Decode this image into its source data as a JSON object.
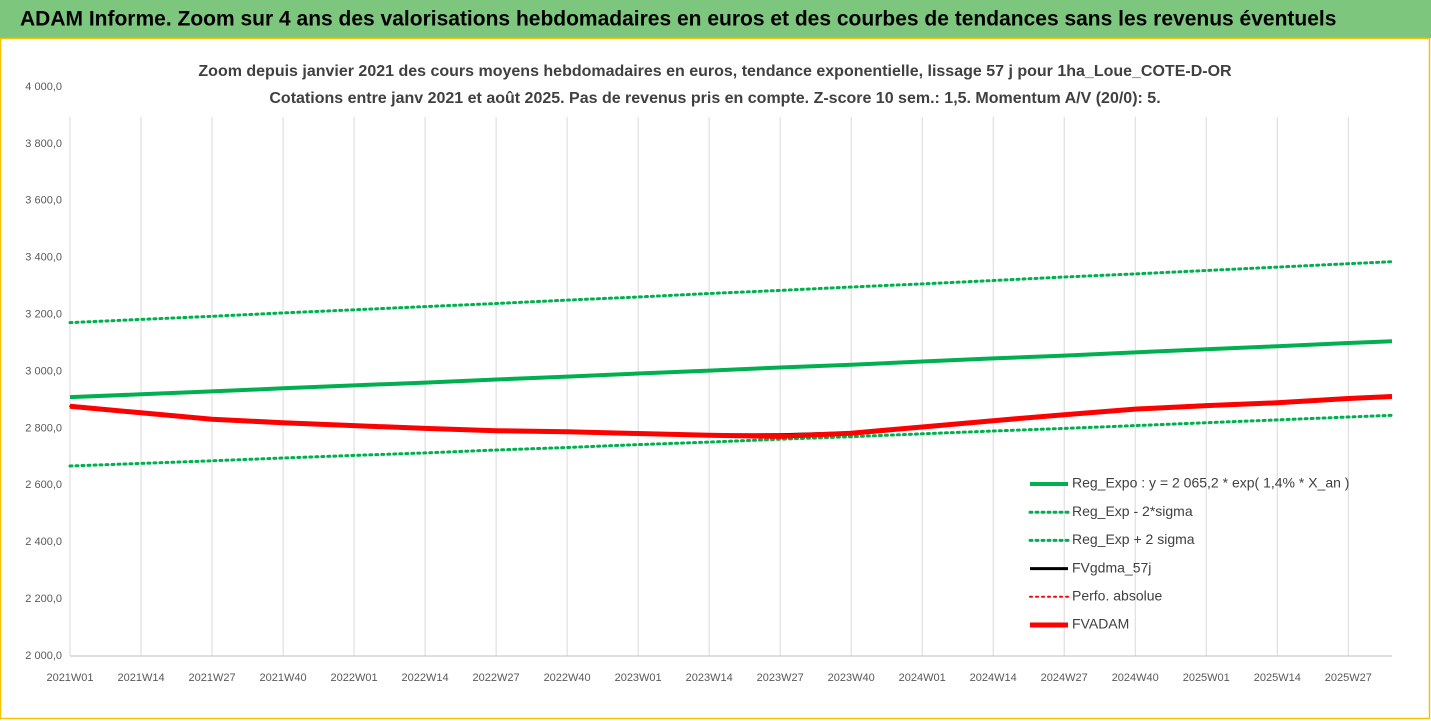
{
  "chart_data": {
    "type": "line",
    "banner": "ADAM Informe. Zoom sur 4 ans des valorisations hebdomadaires en euros et des courbes de tendances sans les revenus éventuels",
    "title": "Zoom depuis janvier 2021 des cours moyens hebdomadaires en euros, tendance exponentielle, lissage 57 j pour 1ha_Loue_COTE-D-OR",
    "subtitle": "Cotations entre janv 2021 et août 2025.  Pas de revenus pris en compte. Z-score 10 sem.: 1,5. Momentum A/V (20/0): 5.",
    "x": [
      0,
      13,
      26,
      39,
      52,
      65,
      78,
      91,
      104,
      117,
      130,
      143,
      156,
      169,
      182,
      195,
      208,
      221,
      234,
      242
    ],
    "xlim": [
      0,
      242
    ],
    "xticks": [
      {
        "value": 0,
        "label": "2021W01"
      },
      {
        "value": 13,
        "label": "2021W14"
      },
      {
        "value": 26,
        "label": "2021W27"
      },
      {
        "value": 39,
        "label": "2021W40"
      },
      {
        "value": 52,
        "label": "2022W01"
      },
      {
        "value": 65,
        "label": "2022W14"
      },
      {
        "value": 78,
        "label": "2022W27"
      },
      {
        "value": 91,
        "label": "2022W40"
      },
      {
        "value": 104,
        "label": "2023W01"
      },
      {
        "value": 117,
        "label": "2023W14"
      },
      {
        "value": 130,
        "label": "2023W27"
      },
      {
        "value": 143,
        "label": "2023W40"
      },
      {
        "value": 156,
        "label": "2024W01"
      },
      {
        "value": 169,
        "label": "2024W14"
      },
      {
        "value": 182,
        "label": "2024W27"
      },
      {
        "value": 195,
        "label": "2024W40"
      },
      {
        "value": 208,
        "label": "2025W01"
      },
      {
        "value": 221,
        "label": "2025W14"
      },
      {
        "value": 234,
        "label": "2025W27"
      }
    ],
    "ylim": [
      2000,
      4000
    ],
    "yticks": [
      {
        "value": 2000,
        "label": "2 000,0"
      },
      {
        "value": 2200,
        "label": "2 200,0"
      },
      {
        "value": 2400,
        "label": "2 400,0"
      },
      {
        "value": 2600,
        "label": "2 600,0"
      },
      {
        "value": 2800,
        "label": "2 800,0"
      },
      {
        "value": 3000,
        "label": "3 000,0"
      },
      {
        "value": 3200,
        "label": "3 200,0"
      },
      {
        "value": 3400,
        "label": "3 400,0"
      },
      {
        "value": 3600,
        "label": "3 600,0"
      },
      {
        "value": 3800,
        "label": "3 800,0"
      },
      {
        "value": 4000,
        "label": "4 000,0"
      }
    ],
    "grid": "x",
    "legend": "lower right",
    "series": [
      {
        "name": "Reg_Expo : y = 2 065,2 * exp( 1,4% *  X_an )",
        "color": "#00b050",
        "style": "solid",
        "width": 4,
        "values": [
          2910,
          2920,
          2930,
          2941,
          2951,
          2961,
          2972,
          2982,
          2993,
          3003,
          3014,
          3024,
          3035,
          3046,
          3056,
          3067,
          3078,
          3089,
          3100,
          3106
        ]
      },
      {
        "name": "Reg_Exp - 2*sigma",
        "color": "#00b050",
        "style": "dotted",
        "width": 3,
        "values": [
          2668,
          2677,
          2686,
          2696,
          2705,
          2714,
          2724,
          2733,
          2743,
          2752,
          2762,
          2771,
          2781,
          2791,
          2800,
          2810,
          2820,
          2830,
          2840,
          2846
        ]
      },
      {
        "name": "Reg_Exp + 2 sigma",
        "color": "#00b050",
        "style": "dotted",
        "width": 3,
        "values": [
          3172,
          3183,
          3194,
          3206,
          3217,
          3228,
          3239,
          3251,
          3262,
          3274,
          3285,
          3297,
          3308,
          3320,
          3332,
          3343,
          3355,
          3367,
          3379,
          3386
        ]
      },
      {
        "name": "FVgdma_57j",
        "color": "#000000",
        "style": "solid",
        "width": 3,
        "values": [
          2878,
          2855,
          2832,
          2820,
          2810,
          2800,
          2792,
          2788,
          2782,
          2777,
          2778,
          2785,
          2805,
          2827,
          2848,
          2868,
          2880,
          2890,
          2905,
          2912
        ]
      },
      {
        "name": "Perfo. absolue",
        "color": "#ff0000",
        "style": "dotted",
        "width": 2,
        "values": [
          2878,
          2855,
          2832,
          2820,
          2810,
          2800,
          2792,
          2788,
          2782,
          2776,
          2772,
          2783,
          2805,
          2827,
          2848,
          2868,
          2880,
          2890,
          2905,
          2912
        ]
      },
      {
        "name": "FVADAM",
        "color": "#ff0000",
        "style": "solid",
        "width": 5,
        "values": [
          2878,
          2855,
          2832,
          2820,
          2810,
          2800,
          2792,
          2788,
          2782,
          2776,
          2772,
          2783,
          2805,
          2827,
          2848,
          2868,
          2880,
          2890,
          2905,
          2912
        ]
      }
    ]
  }
}
